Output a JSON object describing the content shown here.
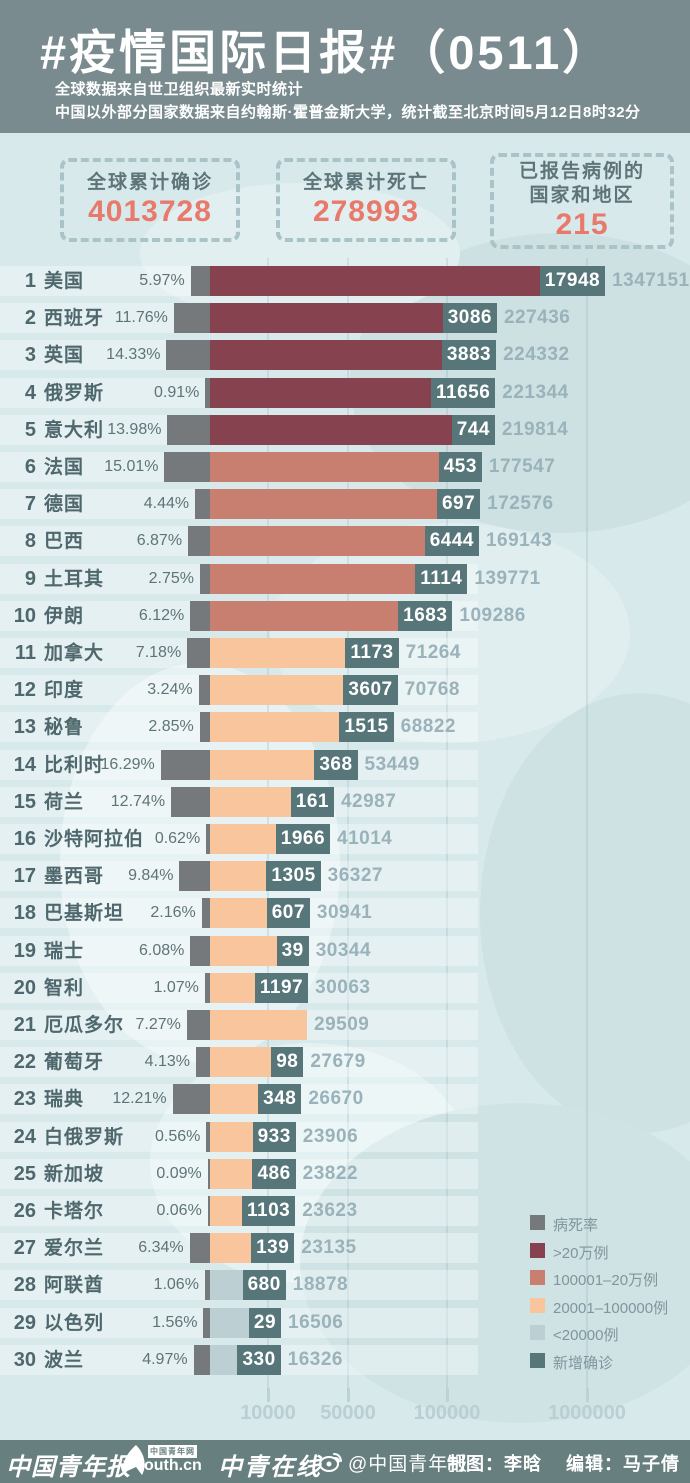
{
  "header": {
    "title": "#疫情国际日报#（0511）",
    "subtitle1": "全球数据来自世卫组织最新实时统计",
    "subtitle2": "中国以外部分国家数据来自约翰斯·霍普金斯大学，统计截至北京时间5月12日8时32分"
  },
  "stats": {
    "confirmed": {
      "label": "全球累计确诊",
      "value": "4013728"
    },
    "deaths": {
      "label": "全球累计死亡",
      "value": "278993"
    },
    "regions": {
      "label_line1": "已报告病例的",
      "label_line2": "国家和地区",
      "value": "215"
    }
  },
  "chart_data": {
    "type": "bar",
    "orientation": "horizontal",
    "columns": [
      "rank",
      "country",
      "death_rate",
      "new_confirmed",
      "total_confirmed"
    ],
    "rows": [
      [
        1,
        "美国",
        "5.97%",
        17948,
        1347151
      ],
      [
        2,
        "西班牙",
        "11.76%",
        3086,
        227436
      ],
      [
        3,
        "英国",
        "14.33%",
        3883,
        224332
      ],
      [
        4,
        "俄罗斯",
        "0.91%",
        11656,
        221344
      ],
      [
        5,
        "意大利",
        "13.98%",
        744,
        219814
      ],
      [
        6,
        "法国",
        "15.01%",
        453,
        177547
      ],
      [
        7,
        "德国",
        "4.44%",
        697,
        172576
      ],
      [
        8,
        "巴西",
        "6.87%",
        6444,
        169143
      ],
      [
        9,
        "土耳其",
        "2.75%",
        1114,
        139771
      ],
      [
        10,
        "伊朗",
        "6.12%",
        1683,
        109286
      ],
      [
        11,
        "加拿大",
        "7.18%",
        1173,
        71264
      ],
      [
        12,
        "印度",
        "3.24%",
        3607,
        70768
      ],
      [
        13,
        "秘鲁",
        "2.85%",
        1515,
        68822
      ],
      [
        14,
        "比利时",
        "16.29%",
        368,
        53449
      ],
      [
        15,
        "荷兰",
        "12.74%",
        161,
        42987
      ],
      [
        16,
        "沙特阿拉伯",
        "0.62%",
        1966,
        41014
      ],
      [
        17,
        "墨西哥",
        "9.84%",
        1305,
        36327
      ],
      [
        18,
        "巴基斯坦",
        "2.16%",
        607,
        30941
      ],
      [
        19,
        "瑞士",
        "6.08%",
        39,
        30344
      ],
      [
        20,
        "智利",
        "1.07%",
        1197,
        30063
      ],
      [
        21,
        "厄瓜多尔",
        "7.27%",
        null,
        29509
      ],
      [
        22,
        "葡萄牙",
        "4.13%",
        98,
        27679
      ],
      [
        23,
        "瑞典",
        "12.21%",
        348,
        26670
      ],
      [
        24,
        "白俄罗斯",
        "0.56%",
        933,
        23906
      ],
      [
        25,
        "新加坡",
        "0.09%",
        486,
        23822
      ],
      [
        26,
        "卡塔尔",
        "0.06%",
        1103,
        23623
      ],
      [
        27,
        "爱尔兰",
        "6.34%",
        139,
        23135
      ],
      [
        28,
        "阿联酋",
        "1.06%",
        680,
        18878
      ],
      [
        29,
        "以色列",
        "1.56%",
        29,
        16506
      ],
      [
        30,
        "波兰",
        "4.97%",
        330,
        16326
      ]
    ],
    "legend": [
      {
        "label": "病死率",
        "color": "#75797c"
      },
      {
        "label": ">20万例",
        "color": "#87424f"
      },
      {
        "label": "100001–20万例",
        "color": "#c87f70"
      },
      {
        "label": "20001–100000例",
        "color": "#f9c59c"
      },
      {
        "label": "<20000例",
        "color": "#bccfd3"
      },
      {
        "label": "新增确诊",
        "color": "#56767a"
      }
    ],
    "x_axis": {
      "scale": "custom",
      "ticks": [
        10000,
        50000,
        100000,
        1000000
      ],
      "tick_labels": [
        "10000",
        "50000",
        "100000",
        "1000000"
      ]
    },
    "category_thresholds": {
      ">200000": "#87424f",
      "100001-200000": "#c87f70",
      "20001-100000": "#f9c59c",
      "<=20000": "#bccfd3"
    }
  },
  "footer": {
    "logo1": "中国青年报",
    "logo2_box": "中国青年网",
    "logo2_text": "outh.cn",
    "logo3": "中青在线",
    "weibo_handle": "@中国青年报",
    "credit_author": "制图：李晗",
    "credit_editor": "编辑：马子倩"
  },
  "colors": {
    "background": "#d7e9eb",
    "header_band": "#798b8e",
    "footer_band": "#67807f",
    "stat_number": "#e8796b",
    "stat_label": "#5d7478",
    "row_text": "#4f686d",
    "total_text": "#9ab2ba",
    "axis_text": "#b9cfd4"
  }
}
